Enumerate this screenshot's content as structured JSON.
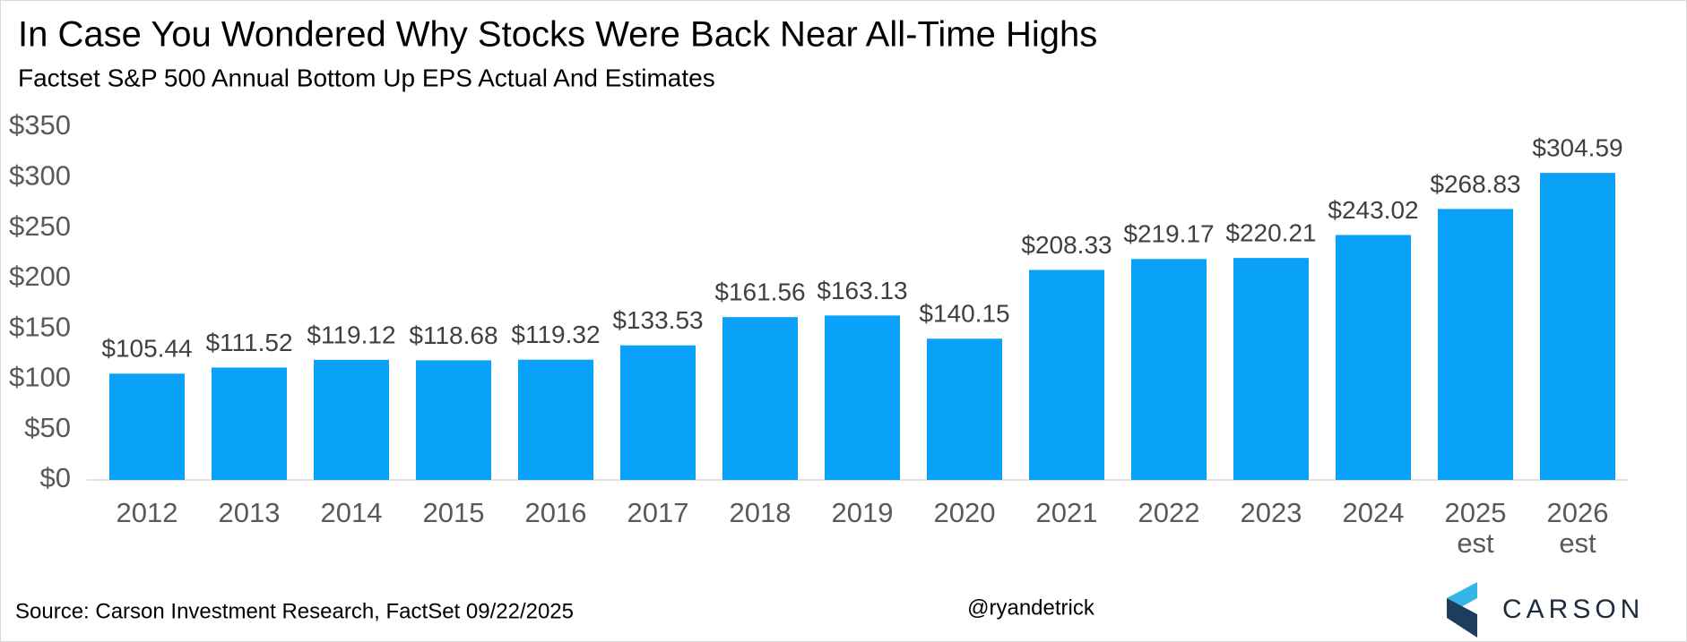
{
  "chart_data": {
    "type": "bar",
    "title": "In Case You Wondered Why Stocks Were Back Near All-Time Highs",
    "subtitle": "Factset S&P 500 Annual Bottom Up EPS Actual And Estimates",
    "categories": [
      "2012",
      "2013",
      "2014",
      "2015",
      "2016",
      "2017",
      "2018",
      "2019",
      "2020",
      "2021",
      "2022",
      "2023",
      "2024",
      "2025 est",
      "2026 est"
    ],
    "values": [
      105.44,
      111.52,
      119.12,
      118.68,
      119.32,
      133.53,
      161.56,
      163.13,
      140.15,
      208.33,
      219.17,
      220.21,
      243.02,
      268.83,
      304.59
    ],
    "value_labels": [
      "$105.44",
      "$111.52",
      "$119.12",
      "$118.68",
      "$119.32",
      "$133.53",
      "$161.56",
      "$163.13",
      "$140.15",
      "$208.33",
      "$219.17",
      "$220.21",
      "$243.02",
      "$268.83",
      "$304.59"
    ],
    "color": "#0aa2f8",
    "ylim": [
      0,
      350
    ],
    "yticks": [
      {
        "value": 0,
        "label": "$0"
      },
      {
        "value": 50,
        "label": "$50"
      },
      {
        "value": 100,
        "label": "$100"
      },
      {
        "value": 150,
        "label": "$150"
      },
      {
        "value": 200,
        "label": "$200"
      },
      {
        "value": 250,
        "label": "$250"
      },
      {
        "value": 300,
        "label": "$300"
      },
      {
        "value": 350,
        "label": "$350"
      }
    ],
    "grid": false,
    "source": "Source: Carson Investment Research, FactSet 09/22/2025",
    "handle": "@ryandetrick",
    "logo": "CARSON"
  }
}
